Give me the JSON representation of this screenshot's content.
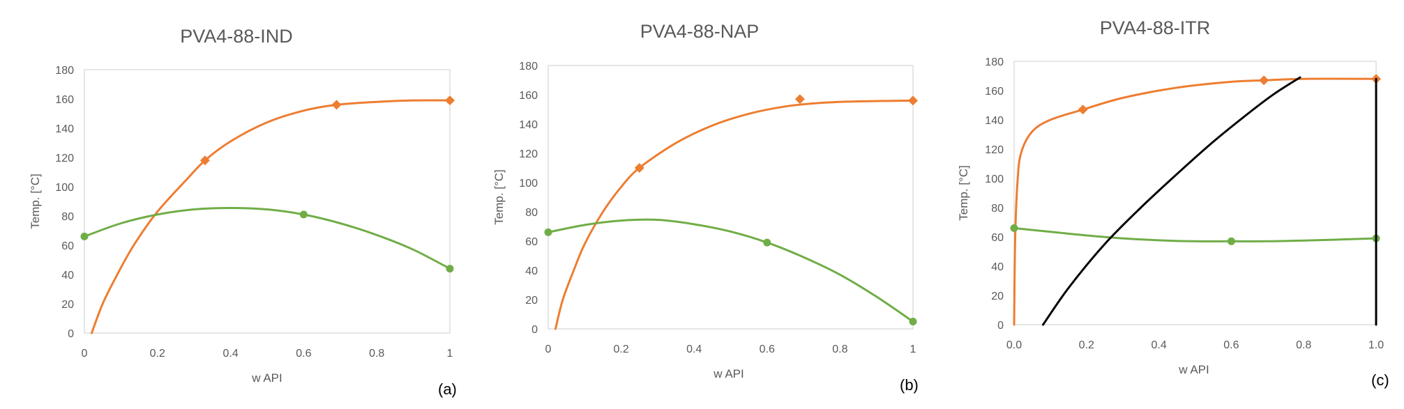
{
  "chart_data": [
    {
      "type": "line",
      "title": "PVA4-88-IND",
      "panel_label": "(a)",
      "xlabel": "w API",
      "ylabel": "Temp. [°C]",
      "xlim": [
        0,
        1
      ],
      "ylim": [
        0,
        180
      ],
      "xticks": [
        "0",
        "0.2",
        "0.4",
        "0.6",
        "0.8",
        "1"
      ],
      "yticks": [
        "0",
        "20",
        "40",
        "60",
        "80",
        "100",
        "120",
        "140",
        "160",
        "180"
      ],
      "grid": false,
      "series": [
        {
          "color": "#ed7d31",
          "marker": "diamond",
          "points": [
            [
              0.33,
              118
            ],
            [
              0.69,
              156
            ],
            [
              1.0,
              159
            ]
          ],
          "curve": [
            [
              0.02,
              0
            ],
            [
              0.05,
              20
            ],
            [
              0.09,
              40
            ],
            [
              0.135,
              60
            ],
            [
              0.2,
              83
            ],
            [
              0.28,
              105
            ],
            [
              0.33,
              118
            ],
            [
              0.4,
              131
            ],
            [
              0.5,
              144
            ],
            [
              0.6,
              152
            ],
            [
              0.69,
              156
            ],
            [
              0.8,
              158
            ],
            [
              0.9,
              159
            ],
            [
              1.0,
              159
            ]
          ]
        },
        {
          "color": "#70ad47",
          "marker": "circle",
          "points": [
            [
              0.0,
              66
            ],
            [
              0.6,
              81
            ],
            [
              1.0,
              44
            ]
          ],
          "curve": [
            [
              0.0,
              66
            ],
            [
              0.1,
              75
            ],
            [
              0.2,
              81
            ],
            [
              0.3,
              84.5
            ],
            [
              0.4,
              85.5
            ],
            [
              0.5,
              84.5
            ],
            [
              0.6,
              81
            ],
            [
              0.7,
              75
            ],
            [
              0.8,
              67
            ],
            [
              0.9,
              57
            ],
            [
              1.0,
              44
            ]
          ]
        }
      ]
    },
    {
      "type": "line",
      "title": "PVA4-88-NAP",
      "panel_label": "(b)",
      "xlabel": "w API",
      "ylabel": "Temp. [°C]",
      "xlim": [
        0,
        1
      ],
      "ylim": [
        0,
        180
      ],
      "xticks": [
        "0",
        "0.2",
        "0.4",
        "0.6",
        "0.8",
        "1"
      ],
      "yticks": [
        "0",
        "20",
        "40",
        "60",
        "80",
        "100",
        "120",
        "140",
        "160",
        "180"
      ],
      "grid": false,
      "series": [
        {
          "color": "#ed7d31",
          "marker": "diamond",
          "points": [
            [
              0.25,
              110
            ],
            [
              0.69,
              157
            ],
            [
              1.0,
              156
            ]
          ],
          "curve": [
            [
              0.02,
              0
            ],
            [
              0.04,
              20
            ],
            [
              0.07,
              40
            ],
            [
              0.1,
              58
            ],
            [
              0.15,
              80
            ],
            [
              0.2,
              97
            ],
            [
              0.25,
              110
            ],
            [
              0.35,
              127
            ],
            [
              0.45,
              139
            ],
            [
              0.55,
              147
            ],
            [
              0.65,
              152
            ],
            [
              0.75,
              154.5
            ],
            [
              0.85,
              155.5
            ],
            [
              1.0,
              156
            ]
          ]
        },
        {
          "color": "#70ad47",
          "marker": "circle",
          "points": [
            [
              0.0,
              66
            ],
            [
              0.6,
              59
            ],
            [
              1.0,
              5
            ]
          ],
          "curve": [
            [
              0.0,
              66
            ],
            [
              0.1,
              71
            ],
            [
              0.2,
              74
            ],
            [
              0.3,
              74.5
            ],
            [
              0.4,
              71.5
            ],
            [
              0.5,
              66.5
            ],
            [
              0.6,
              59
            ],
            [
              0.7,
              49
            ],
            [
              0.8,
              37
            ],
            [
              0.9,
              22
            ],
            [
              1.0,
              5
            ]
          ]
        }
      ]
    },
    {
      "type": "line",
      "title": "PVA4-88-ITR",
      "panel_label": "(c)",
      "xlabel": "w API",
      "ylabel": "Temp. [°C]",
      "xlim": [
        0,
        1
      ],
      "ylim": [
        0,
        180
      ],
      "xticks": [
        "0.0",
        "0.2",
        "0.4",
        "0.6",
        "0.8",
        "1.0"
      ],
      "yticks": [
        "0",
        "20",
        "40",
        "60",
        "80",
        "100",
        "120",
        "140",
        "160",
        "180"
      ],
      "grid": false,
      "series": [
        {
          "color": "#ed7d31",
          "marker": "diamond",
          "points": [
            [
              0.19,
              147
            ],
            [
              0.69,
              167
            ],
            [
              1.0,
              168
            ]
          ],
          "curve": [
            [
              0.0,
              0
            ],
            [
              0.003,
              60
            ],
            [
              0.01,
              100
            ],
            [
              0.02,
              118
            ],
            [
              0.05,
              132
            ],
            [
              0.1,
              140
            ],
            [
              0.19,
              147
            ],
            [
              0.3,
              155
            ],
            [
              0.45,
              162
            ],
            [
              0.6,
              166
            ],
            [
              0.69,
              167
            ],
            [
              0.8,
              168
            ],
            [
              1.0,
              168
            ]
          ]
        },
        {
          "color": "#70ad47",
          "marker": "circle",
          "points": [
            [
              0.0,
              66
            ],
            [
              0.6,
              57
            ],
            [
              1.0,
              59
            ]
          ],
          "curve": [
            [
              0.0,
              66
            ],
            [
              0.1,
              63.5
            ],
            [
              0.2,
              61
            ],
            [
              0.3,
              59
            ],
            [
              0.4,
              57.7
            ],
            [
              0.5,
              57
            ],
            [
              0.6,
              57
            ],
            [
              0.7,
              57
            ],
            [
              0.8,
              57.5
            ],
            [
              0.9,
              58.2
            ],
            [
              1.0,
              59
            ]
          ]
        },
        {
          "color": "#000000",
          "marker": "none",
          "points": [],
          "curve": [
            [
              0.08,
              0
            ],
            [
              0.15,
              25
            ],
            [
              0.25,
              55
            ],
            [
              0.35,
              80
            ],
            [
              0.45,
              103
            ],
            [
              0.55,
              125
            ],
            [
              0.65,
              145
            ],
            [
              0.72,
              158
            ],
            [
              0.79,
              169
            ]
          ]
        },
        {
          "color": "#000000",
          "marker": "none",
          "points": [],
          "curve": [
            [
              1.0,
              0
            ],
            [
              1.0,
              168
            ]
          ]
        }
      ]
    }
  ]
}
